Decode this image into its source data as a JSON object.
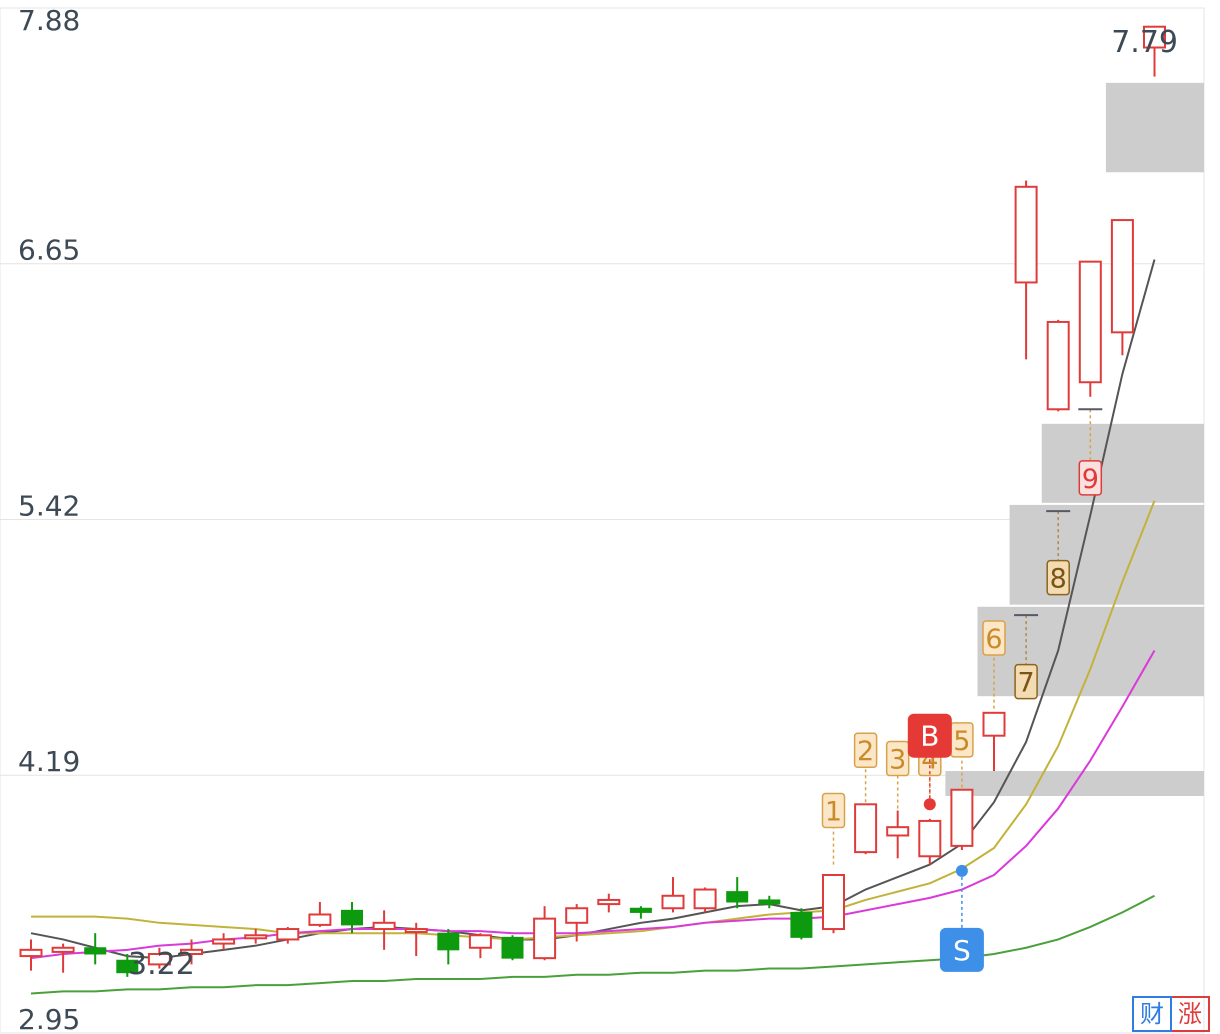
{
  "chart_data": {
    "type": "candlestick",
    "y_ticks": [
      "7.88",
      "6.65",
      "5.42",
      "4.19",
      "2.95"
    ],
    "ylim": [
      2.95,
      7.88
    ],
    "grid": true,
    "high_label": "7.79",
    "low_label": "3.22",
    "candles": [
      {
        "o": 3.32,
        "c": 3.35,
        "h": 3.4,
        "l": 3.25
      },
      {
        "o": 3.34,
        "c": 3.36,
        "h": 3.38,
        "l": 3.24
      },
      {
        "o": 3.36,
        "c": 3.33,
        "h": 3.43,
        "l": 3.28
      },
      {
        "o": 3.3,
        "c": 3.24,
        "h": 3.33,
        "l": 3.22
      },
      {
        "o": 3.28,
        "c": 3.33,
        "h": 3.36,
        "l": 3.26
      },
      {
        "o": 3.33,
        "c": 3.35,
        "h": 3.4,
        "l": 3.28
      },
      {
        "o": 3.38,
        "c": 3.4,
        "h": 3.43,
        "l": 3.35
      },
      {
        "o": 3.42,
        "c": 3.42,
        "h": 3.45,
        "l": 3.38
      },
      {
        "o": 3.4,
        "c": 3.45,
        "h": 3.46,
        "l": 3.38
      },
      {
        "o": 3.47,
        "c": 3.52,
        "h": 3.58,
        "l": 3.46
      },
      {
        "o": 3.54,
        "c": 3.47,
        "h": 3.58,
        "l": 3.43
      },
      {
        "o": 3.45,
        "c": 3.48,
        "h": 3.54,
        "l": 3.35
      },
      {
        "o": 3.45,
        "c": 3.45,
        "h": 3.48,
        "l": 3.32
      },
      {
        "o": 3.43,
        "c": 3.35,
        "h": 3.45,
        "l": 3.28
      },
      {
        "o": 3.36,
        "c": 3.42,
        "h": 3.43,
        "l": 3.31
      },
      {
        "o": 3.41,
        "c": 3.31,
        "h": 3.42,
        "l": 3.3
      },
      {
        "o": 3.31,
        "c": 3.5,
        "h": 3.56,
        "l": 3.3
      },
      {
        "o": 3.48,
        "c": 3.55,
        "h": 3.57,
        "l": 3.39
      },
      {
        "o": 3.57,
        "c": 3.59,
        "h": 3.62,
        "l": 3.53
      },
      {
        "o": 3.55,
        "c": 3.53,
        "h": 3.56,
        "l": 3.5
      },
      {
        "o": 3.55,
        "c": 3.61,
        "h": 3.7,
        "l": 3.53
      },
      {
        "o": 3.55,
        "c": 3.64,
        "h": 3.65,
        "l": 3.53
      },
      {
        "o": 3.63,
        "c": 3.58,
        "h": 3.7,
        "l": 3.55
      },
      {
        "o": 3.59,
        "c": 3.57,
        "h": 3.61,
        "l": 3.55
      },
      {
        "o": 3.53,
        "c": 3.41,
        "h": 3.55,
        "l": 3.4
      },
      {
        "o": 3.45,
        "c": 3.71,
        "h": 3.71,
        "l": 3.43
      },
      {
        "o": 3.82,
        "c": 4.05,
        "h": 4.05,
        "l": 3.81
      },
      {
        "o": 3.9,
        "c": 3.94,
        "h": 4.02,
        "l": 3.79
      },
      {
        "o": 3.8,
        "c": 3.97,
        "h": 3.98,
        "l": 3.76
      },
      {
        "o": 3.85,
        "c": 4.12,
        "h": 4.12,
        "l": 3.83
      },
      {
        "o": 4.38,
        "c": 4.49,
        "h": 4.49,
        "l": 4.21
      },
      {
        "o": 6.56,
        "c": 7.02,
        "h": 7.05,
        "l": 6.19
      },
      {
        "o": 5.95,
        "c": 6.37,
        "h": 6.38,
        "l": 5.94
      },
      {
        "o": 6.08,
        "c": 6.66,
        "h": 6.66,
        "l": 6.01
      },
      {
        "o": 6.32,
        "c": 6.86,
        "h": 6.86,
        "l": 6.21
      },
      {
        "o": 7.69,
        "c": 7.79,
        "h": 7.79,
        "l": 7.55
      }
    ],
    "moving_averages": [
      {
        "color": "#555555",
        "values": [
          3.43,
          3.4,
          3.36,
          3.32,
          3.31,
          3.33,
          3.35,
          3.37,
          3.4,
          3.43,
          3.45,
          3.46,
          3.45,
          3.44,
          3.42,
          3.4,
          3.4,
          3.42,
          3.45,
          3.48,
          3.5,
          3.53,
          3.56,
          3.57,
          3.54,
          3.56,
          3.64,
          3.7,
          3.76,
          3.86,
          4.06,
          4.35,
          4.79,
          5.44,
          6.12,
          6.67
        ]
      },
      {
        "color": "#c3b23a",
        "values": [
          3.51,
          3.51,
          3.51,
          3.5,
          3.48,
          3.47,
          3.46,
          3.45,
          3.43,
          3.43,
          3.43,
          3.43,
          3.43,
          3.42,
          3.41,
          3.4,
          3.41,
          3.42,
          3.43,
          3.44,
          3.46,
          3.48,
          3.5,
          3.52,
          3.53,
          3.54,
          3.59,
          3.63,
          3.67,
          3.74,
          3.84,
          4.05,
          4.33,
          4.7,
          5.12,
          5.51
        ]
      },
      {
        "color": "#d93ad9",
        "values": [
          3.31,
          3.33,
          3.34,
          3.35,
          3.37,
          3.38,
          3.4,
          3.41,
          3.43,
          3.44,
          3.45,
          3.45,
          3.45,
          3.44,
          3.44,
          3.43,
          3.43,
          3.43,
          3.44,
          3.45,
          3.46,
          3.48,
          3.49,
          3.5,
          3.5,
          3.51,
          3.54,
          3.57,
          3.6,
          3.64,
          3.71,
          3.85,
          4.03,
          4.26,
          4.52,
          4.79
        ]
      },
      {
        "color": "#4aa03a",
        "values": [
          3.14,
          3.15,
          3.15,
          3.16,
          3.16,
          3.17,
          3.17,
          3.18,
          3.18,
          3.19,
          3.2,
          3.2,
          3.21,
          3.21,
          3.21,
          3.22,
          3.22,
          3.23,
          3.23,
          3.24,
          3.24,
          3.25,
          3.25,
          3.26,
          3.26,
          3.27,
          3.28,
          3.29,
          3.3,
          3.31,
          3.33,
          3.36,
          3.4,
          3.46,
          3.53,
          3.61
        ]
      }
    ],
    "zones": [
      {
        "lo": 4.09,
        "hi": 4.21,
        "from_candle": 29
      },
      {
        "lo": 4.57,
        "hi": 5.0,
        "from_candle": 30
      },
      {
        "lo": 5.01,
        "hi": 5.49,
        "from_candle": 31
      },
      {
        "lo": 5.5,
        "hi": 5.88,
        "from_candle": 32
      },
      {
        "lo": 7.09,
        "hi": 7.52,
        "from_candle": 34
      }
    ],
    "sequence_marks": [
      {
        "label": "1",
        "candle": 25,
        "label_y": 4.02,
        "level": 3.76,
        "style": "light"
      },
      {
        "label": "2",
        "candle": 26,
        "label_y": 4.31,
        "level": 4.06,
        "style": "light"
      },
      {
        "label": "3",
        "candle": 27,
        "label_y": 4.27,
        "level": 4.03,
        "style": "light"
      },
      {
        "label": "4",
        "candle": 28,
        "label_y": 4.27,
        "level": 4.07,
        "style": "light"
      },
      {
        "label": "5",
        "candle": 29,
        "label_y": 4.36,
        "level": 4.13,
        "style": "light"
      },
      {
        "label": "6",
        "candle": 30,
        "label_y": 4.85,
        "level": 4.51,
        "style": "light"
      },
      {
        "label": "7",
        "candle": 31,
        "label_y": 4.64,
        "level": 4.96,
        "style": "dark"
      },
      {
        "label": "8",
        "candle": 32,
        "label_y": 5.14,
        "level": 5.46,
        "style": "dark"
      },
      {
        "label": "9",
        "candle": 33,
        "label_y": 5.62,
        "level": 5.95,
        "style": "red"
      }
    ],
    "signals": [
      {
        "label": "B",
        "candle": 28,
        "badge_y": 4.38,
        "dot_y": 4.05,
        "color": "#e53935"
      },
      {
        "label": "S",
        "candle": 29,
        "badge_y": 3.35,
        "dot_y": 3.73,
        "color": "#3d8fe8"
      }
    ],
    "up_color": "#e03b3b",
    "down_color": "#0e9a0e"
  },
  "watermark": {
    "left_char": "财",
    "right_char": "涨"
  }
}
